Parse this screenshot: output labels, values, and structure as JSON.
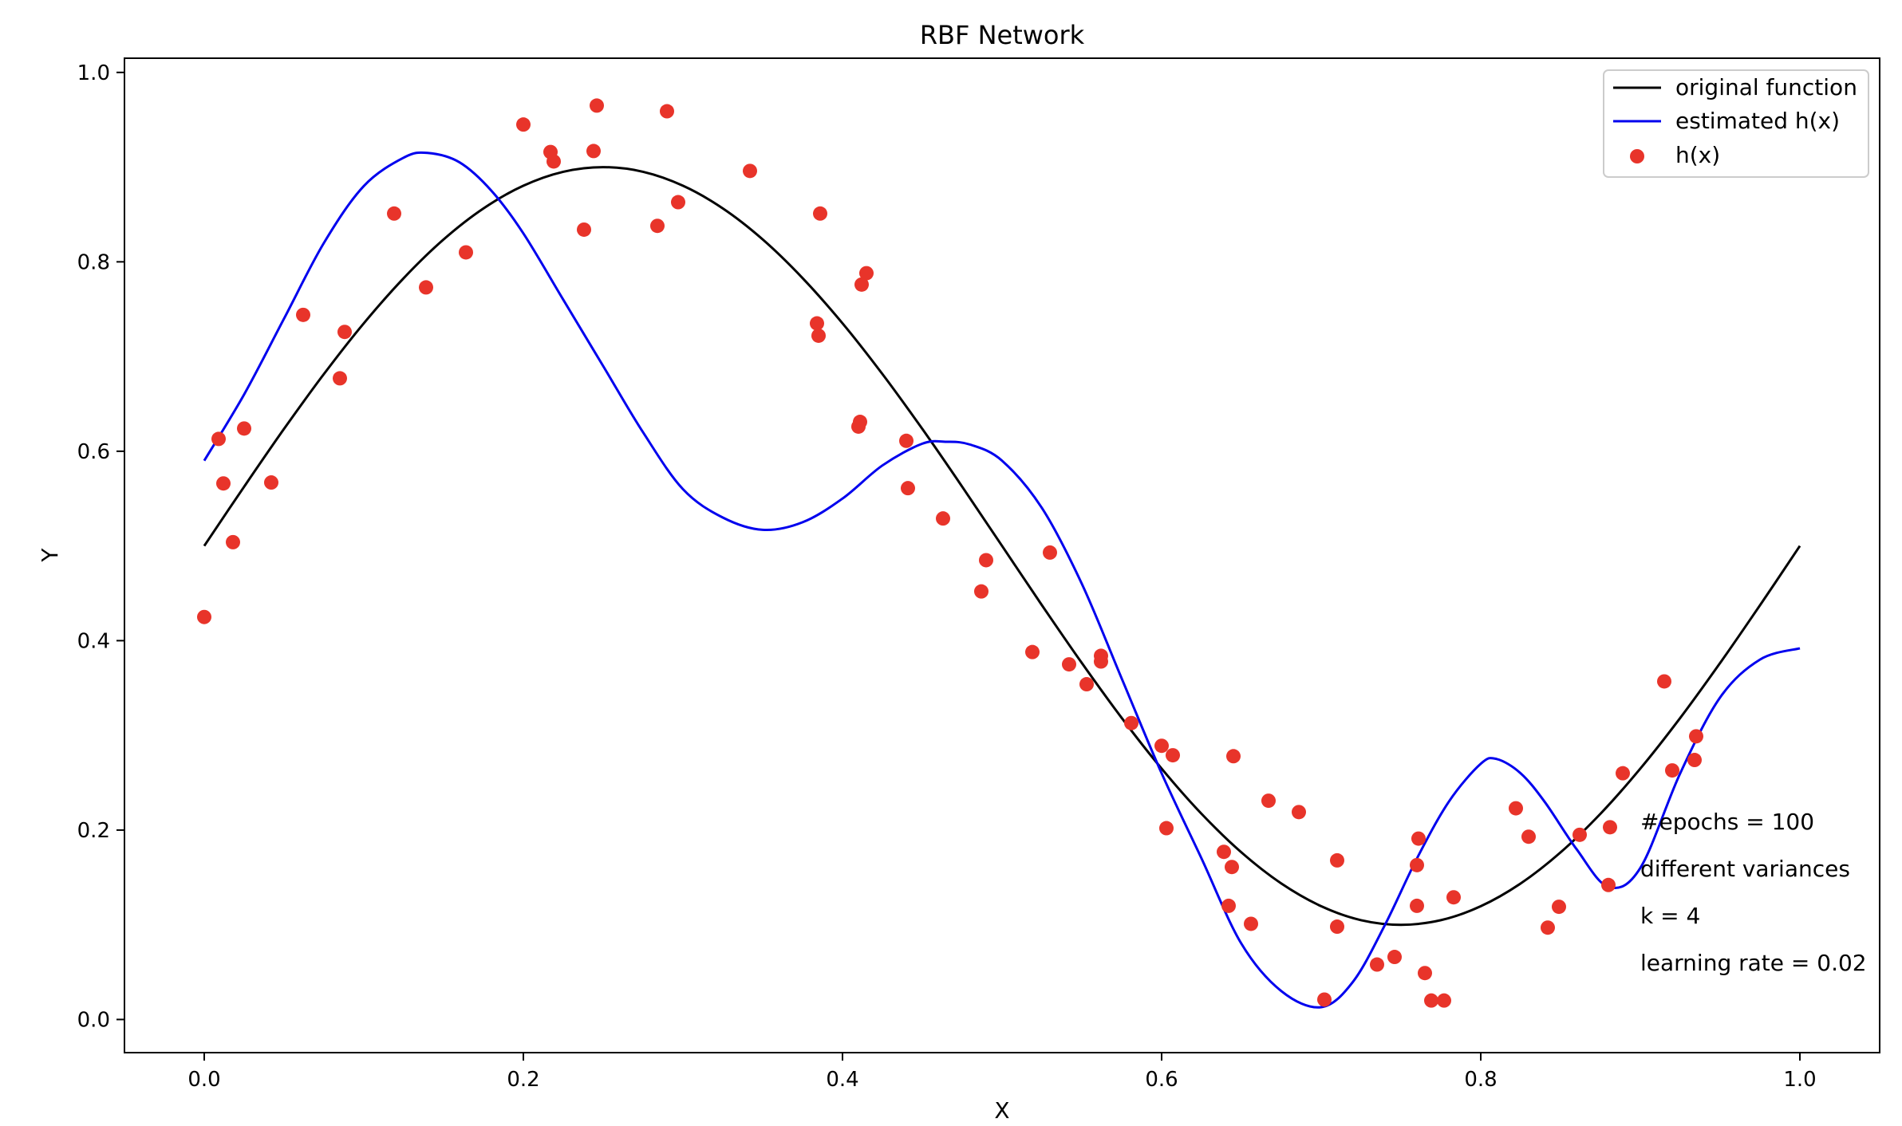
{
  "chart_data": {
    "type": "line",
    "title": "RBF Network",
    "xlabel": "X",
    "ylabel": "Y",
    "xlim": [
      -0.05,
      1.05
    ],
    "ylim": [
      -0.035,
      1.015
    ],
    "x_ticks": [
      "0.0",
      "0.2",
      "0.4",
      "0.6",
      "0.8",
      "1.0"
    ],
    "y_ticks": [
      "0.0",
      "0.2",
      "0.4",
      "0.6",
      "0.8",
      "1.0"
    ],
    "grid": false,
    "legend_position": "top-right",
    "legend": {
      "entries": [
        "original function",
        "estimated h(x)",
        "h(x)"
      ]
    },
    "series": [
      {
        "name": "original function",
        "type": "line",
        "color": "#000000",
        "x": [
          0.0,
          0.025,
          0.05,
          0.075,
          0.1,
          0.125,
          0.15,
          0.175,
          0.2,
          0.225,
          0.25,
          0.275,
          0.3,
          0.325,
          0.35,
          0.375,
          0.4,
          0.425,
          0.45,
          0.475,
          0.5,
          0.525,
          0.55,
          0.575,
          0.6,
          0.625,
          0.65,
          0.675,
          0.7,
          0.725,
          0.75,
          0.775,
          0.8,
          0.825,
          0.85,
          0.875,
          0.9,
          0.925,
          0.95,
          0.975,
          1.0
        ],
        "y": [
          0.5,
          0.5626,
          0.6236,
          0.6816,
          0.7351,
          0.7828,
          0.8236,
          0.8564,
          0.8804,
          0.8951,
          0.9,
          0.8951,
          0.8804,
          0.8564,
          0.8236,
          0.7828,
          0.7351,
          0.6816,
          0.6236,
          0.5626,
          0.5,
          0.4374,
          0.3764,
          0.3184,
          0.2649,
          0.2172,
          0.1764,
          0.1436,
          0.1196,
          0.1049,
          0.1,
          0.1049,
          0.1196,
          0.1436,
          0.1764,
          0.2172,
          0.2649,
          0.3184,
          0.3764,
          0.4374,
          0.5
        ]
      },
      {
        "name": "estimated h(x)",
        "type": "line",
        "color": "#0000ee",
        "x": [
          0.0,
          0.025,
          0.05,
          0.075,
          0.1,
          0.125,
          0.14,
          0.16,
          0.18,
          0.2,
          0.225,
          0.25,
          0.275,
          0.3,
          0.325,
          0.35,
          0.375,
          0.4,
          0.425,
          0.45,
          0.465,
          0.48,
          0.5,
          0.525,
          0.55,
          0.575,
          0.6,
          0.625,
          0.65,
          0.675,
          0.7,
          0.72,
          0.74,
          0.76,
          0.78,
          0.8,
          0.81,
          0.825,
          0.84,
          0.86,
          0.88,
          0.9,
          0.925,
          0.95,
          0.975,
          1.0
        ],
        "y": [
          0.59,
          0.66,
          0.74,
          0.82,
          0.88,
          0.91,
          0.915,
          0.905,
          0.875,
          0.83,
          0.76,
          0.69,
          0.62,
          0.56,
          0.53,
          0.517,
          0.525,
          0.55,
          0.585,
          0.608,
          0.61,
          0.607,
          0.59,
          0.54,
          0.46,
          0.36,
          0.26,
          0.17,
          0.08,
          0.03,
          0.013,
          0.04,
          0.1,
          0.17,
          0.23,
          0.27,
          0.275,
          0.26,
          0.23,
          0.18,
          0.14,
          0.16,
          0.26,
          0.34,
          0.38,
          0.392
        ]
      },
      {
        "name": "h(x)",
        "type": "scatter",
        "color": "#e8342a",
        "x": [
          0.0,
          0.009,
          0.012,
          0.018,
          0.025,
          0.042,
          0.062,
          0.085,
          0.088,
          0.119,
          0.139,
          0.164,
          0.2,
          0.217,
          0.219,
          0.238,
          0.244,
          0.246,
          0.284,
          0.29,
          0.297,
          0.342,
          0.384,
          0.385,
          0.386,
          0.41,
          0.411,
          0.412,
          0.415,
          0.44,
          0.441,
          0.463,
          0.487,
          0.49,
          0.519,
          0.53,
          0.542,
          0.553,
          0.562,
          0.562,
          0.581,
          0.6,
          0.603,
          0.607,
          0.639,
          0.642,
          0.644,
          0.645,
          0.656,
          0.667,
          0.686,
          0.702,
          0.71,
          0.71,
          0.735,
          0.746,
          0.76,
          0.76,
          0.761,
          0.765,
          0.769,
          0.777,
          0.783,
          0.822,
          0.83,
          0.842,
          0.849,
          0.862,
          0.88,
          0.881,
          0.889,
          0.915,
          0.92,
          0.934,
          0.935
        ],
        "y": [
          0.425,
          0.613,
          0.566,
          0.504,
          0.624,
          0.567,
          0.744,
          0.677,
          0.726,
          0.851,
          0.773,
          0.81,
          0.945,
          0.916,
          0.906,
          0.834,
          0.917,
          0.965,
          0.838,
          0.959,
          0.863,
          0.896,
          0.735,
          0.722,
          0.851,
          0.626,
          0.631,
          0.776,
          0.788,
          0.611,
          0.561,
          0.529,
          0.452,
          0.485,
          0.388,
          0.493,
          0.375,
          0.354,
          0.384,
          0.378,
          0.313,
          0.289,
          0.202,
          0.279,
          0.177,
          0.12,
          0.161,
          0.278,
          0.101,
          0.231,
          0.219,
          0.021,
          0.168,
          0.098,
          0.058,
          0.066,
          0.12,
          0.163,
          0.191,
          0.049,
          0.02,
          0.02,
          0.129,
          0.223,
          0.193,
          0.097,
          0.119,
          0.195,
          0.142,
          0.203,
          0.26,
          0.357,
          0.263,
          0.274,
          0.299
        ]
      }
    ],
    "annotations": [
      "#epochs = 100",
      "different variances",
      "k = 4",
      "learning rate = 0.02"
    ]
  }
}
